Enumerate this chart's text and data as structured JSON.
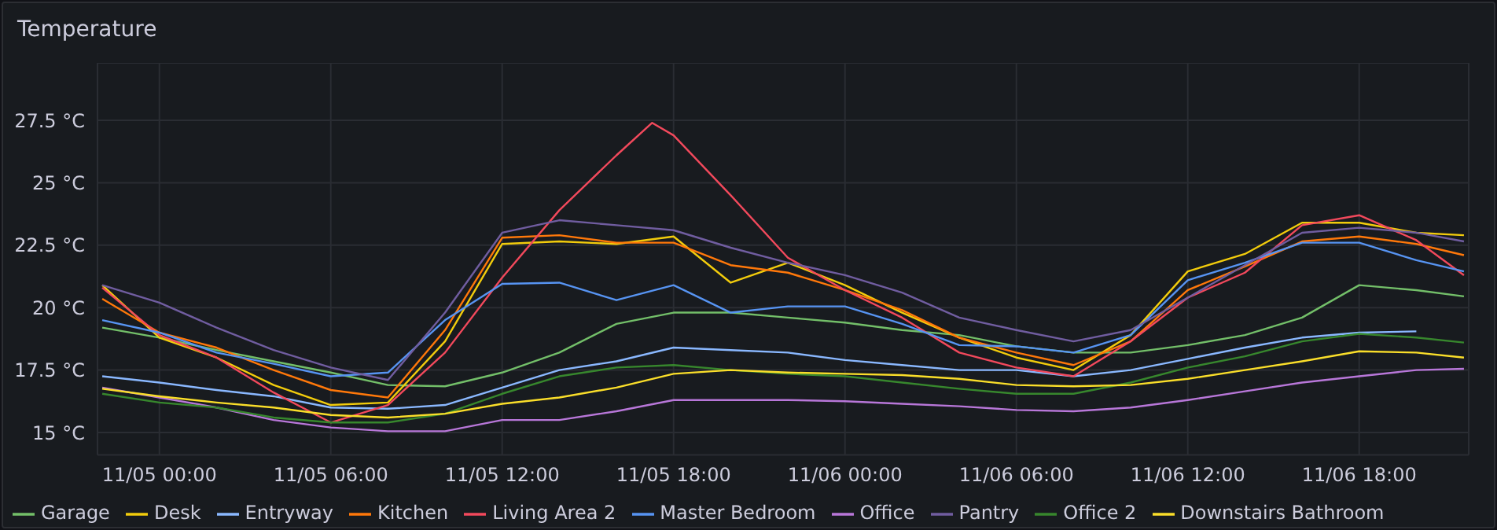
{
  "chart_data": {
    "type": "line",
    "title": "Temperature",
    "x": [
      "--11-04T22:00",
      "--11-05T00:00",
      "--11-05T02:00",
      "--11-05T04:00",
      "--11-05T06:00",
      "--11-05T08:00",
      "--11-05T10:00",
      "--11-05T12:00",
      "--11-05T14:00",
      "--11-05T16:00",
      "--11-05T18:00",
      "--11-05T20:00",
      "--11-05T22:00",
      "--11-06T00:00",
      "--11-06T02:00",
      "--11-06T04:00",
      "--11-06T06:00",
      "--11-06T08:00",
      "--11-06T10:00",
      "--11-06T12:00",
      "--11-06T14:00",
      "--11-06T16:00",
      "--11-06T18:00",
      "--11-06T20:00",
      "--11-06T21:40"
    ],
    "series": [
      {
        "name": "Garage",
        "color": "#73bf69",
        "values": [
          19.2,
          18.8,
          18.3,
          17.85,
          17.4,
          16.9,
          16.85,
          17.4,
          18.2,
          19.35,
          19.8,
          19.8,
          19.6,
          19.4,
          19.1,
          18.9,
          18.45,
          18.2,
          18.2,
          18.5,
          18.9,
          19.6,
          20.9,
          20.7,
          20.45
        ]
      },
      {
        "name": "Desk",
        "color": "#f2cc0c",
        "values": [
          20.9,
          18.8,
          18.0,
          16.9,
          16.1,
          16.2,
          18.65,
          22.55,
          22.65,
          22.55,
          22.85,
          21.0,
          21.8,
          20.9,
          19.8,
          18.8,
          18.0,
          17.5,
          18.9,
          21.45,
          22.15,
          23.4,
          23.4,
          23.0,
          22.9
        ]
      },
      {
        "name": "Entryway",
        "color": "#8ab8ff",
        "values": [
          17.25,
          17.0,
          16.7,
          16.45,
          16.0,
          15.95,
          16.1,
          16.8,
          17.5,
          17.85,
          18.4,
          18.3,
          18.2,
          17.9,
          17.7,
          17.5,
          17.5,
          17.25,
          17.5,
          17.95,
          18.4,
          18.8,
          19.0,
          19.05,
          null
        ]
      },
      {
        "name": "Kitchen",
        "color": "#ff780a",
        "values": [
          20.35,
          19.0,
          18.4,
          17.5,
          16.7,
          16.4,
          19.1,
          22.8,
          22.9,
          22.6,
          22.6,
          21.7,
          21.4,
          20.7,
          19.9,
          18.8,
          18.2,
          17.7,
          18.65,
          20.7,
          21.65,
          22.65,
          22.85,
          22.55,
          22.1
        ]
      },
      {
        "name": "Living Area 2",
        "color": "#f2495c",
        "x": [
          "--11-04T22:00",
          "--11-05T00:00",
          "--11-05T02:00",
          "--11-05T04:00",
          "--11-05T06:00",
          "--11-05T08:00",
          "--11-05T10:00",
          "--11-05T12:00",
          "--11-05T14:00",
          "--11-05T16:00",
          "--11-05T17:15",
          "--11-05T18:00",
          "--11-05T20:00",
          "--11-05T22:00",
          "--11-06T00:00",
          "--11-06T02:00",
          "--11-06T04:00",
          "--11-06T06:00",
          "--11-06T08:00",
          "--11-06T10:00",
          "--11-06T12:00",
          "--11-06T14:00",
          "--11-06T16:00",
          "--11-06T18:00",
          "--11-06T20:00",
          "--11-06T21:40"
        ],
        "values": [
          20.8,
          18.9,
          18.0,
          16.6,
          15.4,
          16.1,
          18.2,
          21.2,
          23.9,
          26.1,
          27.4,
          26.9,
          24.5,
          22.0,
          20.7,
          19.6,
          18.2,
          17.6,
          17.25,
          18.65,
          20.4,
          21.4,
          23.3,
          23.7,
          22.7,
          21.3
        ]
      },
      {
        "name": "Master Bedroom",
        "color": "#5794f2",
        "values": [
          19.5,
          19.0,
          18.2,
          17.75,
          17.25,
          17.4,
          19.5,
          20.95,
          21.0,
          20.3,
          20.9,
          19.8,
          20.05,
          20.05,
          19.35,
          18.5,
          18.45,
          18.2,
          18.9,
          21.1,
          21.8,
          22.6,
          22.6,
          21.9,
          21.45
        ]
      },
      {
        "name": "Office",
        "color": "#b877d9",
        "values": [
          16.8,
          16.4,
          16.0,
          15.5,
          15.2,
          15.05,
          15.05,
          15.5,
          15.5,
          15.85,
          16.3,
          16.3,
          16.3,
          16.25,
          16.15,
          16.05,
          15.9,
          15.85,
          16.0,
          16.3,
          16.65,
          17.0,
          17.25,
          17.5,
          17.55
        ]
      },
      {
        "name": "Pantry",
        "color": "#705da0",
        "values": [
          20.9,
          20.2,
          19.2,
          18.3,
          17.6,
          17.1,
          19.8,
          23.0,
          23.5,
          23.3,
          23.1,
          22.4,
          21.8,
          21.3,
          20.6,
          19.6,
          19.1,
          18.65,
          19.1,
          20.4,
          21.7,
          23.0,
          23.2,
          23.0,
          22.65
        ]
      },
      {
        "name": "Office 2",
        "color": "#37872d",
        "values": [
          16.55,
          16.2,
          16.0,
          15.6,
          15.4,
          15.4,
          15.75,
          16.55,
          17.25,
          17.6,
          17.7,
          17.5,
          17.35,
          17.25,
          17.0,
          16.75,
          16.55,
          16.55,
          17.0,
          17.6,
          18.05,
          18.65,
          18.95,
          18.8,
          18.6
        ]
      },
      {
        "name": "Downstairs Bathroom",
        "color": "#fade2a",
        "values": [
          16.75,
          16.45,
          16.2,
          16.0,
          15.7,
          15.6,
          15.75,
          16.15,
          16.4,
          16.8,
          17.35,
          17.5,
          17.4,
          17.35,
          17.3,
          17.15,
          16.9,
          16.85,
          16.9,
          17.15,
          17.5,
          17.85,
          18.25,
          18.2,
          18.0
        ]
      }
    ],
    "xlim": [
      "--11-04T21:50",
      "--11-06T21:50"
    ],
    "xticks": [
      {
        "value": "--11-05T00:00",
        "label": "11/05 00:00"
      },
      {
        "value": "--11-05T06:00",
        "label": "11/05 06:00"
      },
      {
        "value": "--11-05T12:00",
        "label": "11/05 12:00"
      },
      {
        "value": "--11-05T18:00",
        "label": "11/05 18:00"
      },
      {
        "value": "--11-06T00:00",
        "label": "11/06 00:00"
      },
      {
        "value": "--11-06T06:00",
        "label": "11/06 06:00"
      },
      {
        "value": "--11-06T12:00",
        "label": "11/06 12:00"
      },
      {
        "value": "--11-06T18:00",
        "label": "11/06 18:00"
      }
    ],
    "ylim": [
      14.1,
      29.8
    ],
    "yticks": [
      {
        "value": 15,
        "label": "15 °C"
      },
      {
        "value": 17.5,
        "label": "17.5 °C"
      },
      {
        "value": 20,
        "label": "20 °C"
      },
      {
        "value": 22.5,
        "label": "22.5 °C"
      },
      {
        "value": 25,
        "label": "25 °C"
      },
      {
        "value": 27.5,
        "label": "27.5 °C"
      }
    ],
    "grid": true,
    "legend": "bottom left"
  }
}
